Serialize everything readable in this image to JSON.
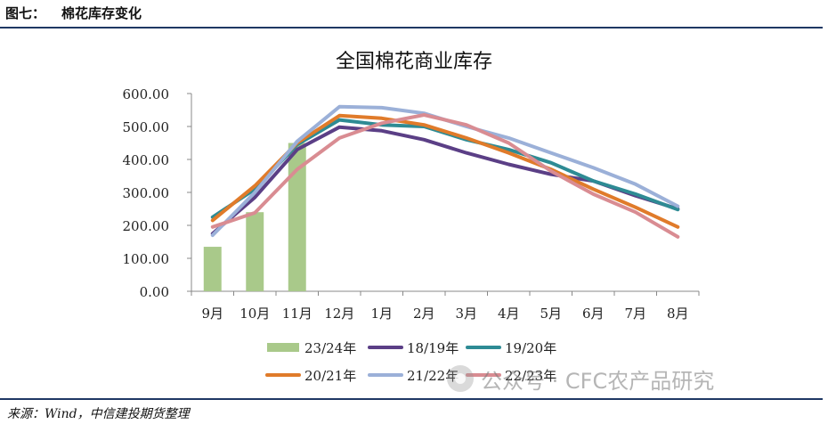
{
  "header": {
    "figure_number": "图七：",
    "figure_title": "棉花库存变化"
  },
  "source_note": "来源：Wind，中信建投期货整理",
  "watermark": {
    "text": "公众号 · CFC农产品研究",
    "icon": "wechat-icon"
  },
  "chart_data": {
    "type": "line",
    "title": "全国棉花商业库存",
    "categories": [
      "9月",
      "10月",
      "11月",
      "12月",
      "1月",
      "2月",
      "3月",
      "4月",
      "5月",
      "6月",
      "7月",
      "8月"
    ],
    "ylim": [
      0,
      600
    ],
    "yticks": [
      "0.00",
      "100.00",
      "200.00",
      "300.00",
      "400.00",
      "500.00",
      "600.00"
    ],
    "grid": false,
    "legend_position": "bottom",
    "bar_series": {
      "name": "23/24年",
      "color": "#a9c98a",
      "values": [
        135,
        240,
        450,
        null,
        null,
        null,
        null,
        null,
        null,
        null,
        null,
        null
      ]
    },
    "series": [
      {
        "name": "18/19年",
        "color": "#5b3f86",
        "values": [
          175,
          285,
          430,
          498,
          487,
          460,
          420,
          385,
          355,
          335,
          290,
          250
        ]
      },
      {
        "name": "19/20年",
        "color": "#2e8b94",
        "values": [
          225,
          310,
          445,
          520,
          505,
          500,
          460,
          430,
          390,
          335,
          295,
          248
        ]
      },
      {
        "name": "20/21年",
        "color": "#e07b2a",
        "values": [
          215,
          320,
          450,
          533,
          525,
          505,
          465,
          420,
          370,
          310,
          255,
          195
        ]
      },
      {
        "name": "21/22年",
        "color": "#9bb0d8",
        "values": [
          170,
          300,
          455,
          560,
          557,
          540,
          500,
          465,
          420,
          375,
          325,
          258
        ]
      },
      {
        "name": "22/23年",
        "color": "#d98c92",
        "values": [
          195,
          238,
          370,
          465,
          510,
          535,
          505,
          450,
          365,
          295,
          240,
          165
        ]
      }
    ]
  }
}
